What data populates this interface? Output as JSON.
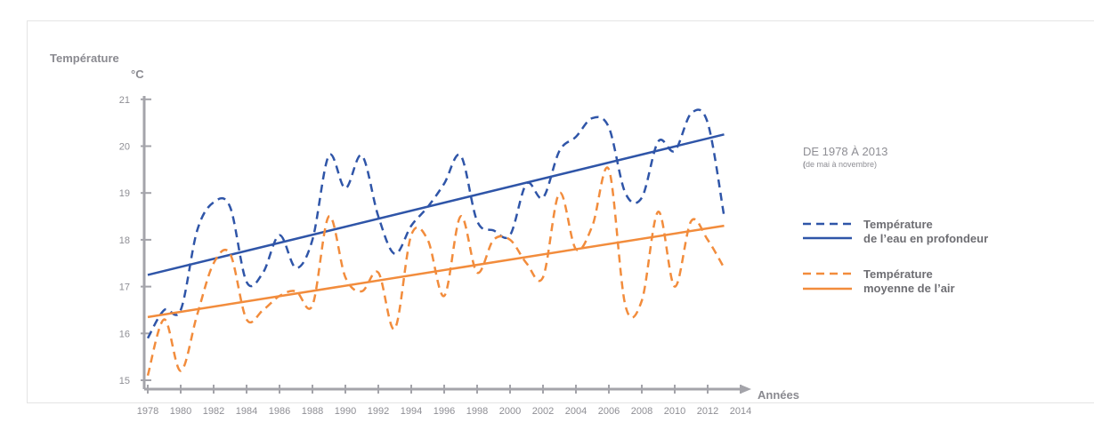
{
  "chart_data": {
    "type": "line",
    "ylabel": "Température",
    "yunit": "°C",
    "xlabel": "Années",
    "ylim": [
      15,
      21
    ],
    "xlim": [
      1978,
      2014
    ],
    "yticks": [
      "15",
      "16",
      "17",
      "18",
      "19",
      "20",
      "21"
    ],
    "xticks": [
      "1978",
      "1980",
      "1982",
      "1984",
      "1986",
      "1988",
      "1990",
      "1992",
      "1994",
      "1996",
      "1998",
      "2000",
      "2002",
      "2004",
      "2006",
      "2008",
      "2010",
      "2012",
      "2014"
    ],
    "legend": {
      "title": "DE 1978 À 2013",
      "subtitle_paren_open": "(",
      "subtitle": "de mai à novembre)",
      "placement": "right",
      "entries": [
        {
          "line1": "Température",
          "line2": "de l’eau en profondeur"
        },
        {
          "line1": "Température",
          "line2": "moyenne de l’air"
        }
      ]
    },
    "x": [
      1978,
      1979,
      1980,
      1981,
      1982,
      1983,
      1984,
      1985,
      1986,
      1987,
      1988,
      1989,
      1990,
      1991,
      1992,
      1993,
      1994,
      1995,
      1996,
      1997,
      1998,
      1999,
      2000,
      2001,
      2002,
      2003,
      2004,
      2005,
      2006,
      2007,
      2008,
      2009,
      2010,
      2011,
      2012,
      2013
    ],
    "series": [
      {
        "style": "dashed",
        "color": "#2f55a8",
        "values": [
          15.9,
          16.5,
          16.5,
          18.2,
          18.8,
          18.7,
          17.1,
          17.3,
          18.1,
          17.4,
          18.0,
          19.8,
          19.1,
          19.8,
          18.5,
          17.7,
          18.3,
          18.7,
          19.2,
          19.8,
          18.4,
          18.2,
          18.1,
          19.2,
          18.9,
          19.9,
          20.2,
          20.6,
          20.4,
          19.0,
          18.9,
          20.1,
          19.9,
          20.7,
          20.5,
          18.5
        ]
      },
      {
        "style": "solid",
        "color": "#2f55a8",
        "trend": true,
        "x": [
          1978,
          2013
        ],
        "values": [
          17.25,
          20.25
        ]
      },
      {
        "style": "dashed",
        "color": "#f28c3c",
        "values": [
          15.1,
          16.3,
          15.2,
          16.4,
          17.5,
          17.7,
          16.3,
          16.5,
          16.8,
          16.9,
          16.6,
          18.5,
          17.2,
          16.9,
          17.3,
          16.1,
          18.1,
          18.0,
          16.8,
          18.5,
          17.3,
          18.0,
          18.0,
          17.5,
          17.2,
          19.0,
          17.8,
          18.3,
          19.5,
          16.6,
          16.7,
          18.6,
          17.0,
          18.4,
          18.0,
          17.4
        ]
      },
      {
        "style": "solid",
        "color": "#f28c3c",
        "trend": true,
        "x": [
          1978,
          2013
        ],
        "values": [
          16.35,
          18.3
        ]
      }
    ]
  }
}
